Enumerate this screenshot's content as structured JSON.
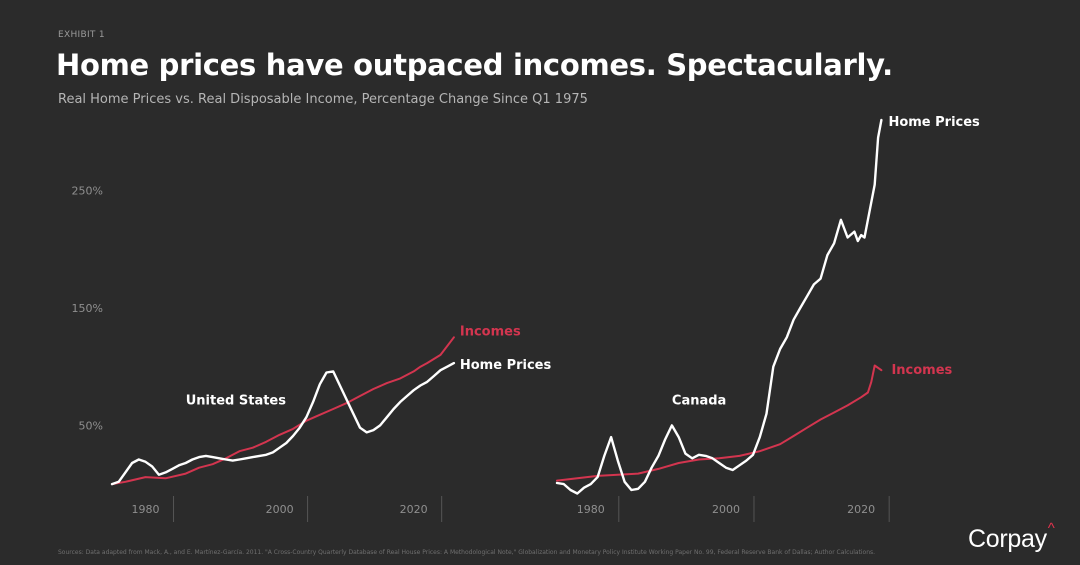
{
  "header": {
    "exhibit": "EXHIBIT 1",
    "title": "Home prices have outpaced incomes. Spectacularly.",
    "subtitle": "Real Home Prices vs. Real Disposable Income, Percentage Change Since Q1 1975"
  },
  "footer": {
    "source": "Sources: Data adapted from Mack, A., and E. Martínez-García. 2011. \"A Cross-Country Quarterly Database of Real House Prices: A Methodological Note,\" Globalization and Monetary Policy Institute Working Paper No. 99, Federal Reserve Bank of Dallas; Author Calculations.",
    "brand": "Corpay",
    "brand_mark": "^"
  },
  "colors": {
    "background": "#2b2b2b",
    "home_prices": "#ffffff",
    "incomes": "#d3354f",
    "axis_text": "#8f8f8f"
  },
  "chart_data": {
    "type": "line",
    "ylim": [
      -5,
      310
    ],
    "y_ticks": [
      50,
      150,
      250
    ],
    "y_tick_labels": [
      "50%",
      "150%",
      "250%"
    ],
    "grid": false,
    "panels": [
      {
        "name": "United States",
        "xlim": [
          1975,
          2029
        ],
        "x_ticks": [
          1980,
          2000,
          2020
        ],
        "x_tick_labels": [
          "1980",
          "2000",
          "2020"
        ],
        "series": [
          {
            "name": "Incomes",
            "color": "#d3354f",
            "x": [
              1975,
              1977,
              1980,
              1983,
              1986,
              1988,
              1990,
              1992,
              1994,
              1996,
              1998,
              2000,
              2002,
              2004,
              2006,
              2008,
              2010,
              2012,
              2014,
              2016,
              2018,
              2020,
              2021,
              2022,
              2024,
              2026
            ],
            "y": [
              0,
              2,
              6,
              5,
              9,
              14,
              17,
              22,
              28,
              31,
              36,
              42,
              47,
              54,
              59,
              64,
              69,
              75,
              81,
              86,
              90,
              96,
              100,
              103,
              110,
              125
            ]
          },
          {
            "name": "Home Prices",
            "color": "#ffffff",
            "x": [
              1975,
              1976,
              1977,
              1978,
              1979,
              1980,
              1981,
              1982,
              1983,
              1984,
              1985,
              1986,
              1987,
              1988,
              1989,
              1990,
              1991,
              1992,
              1993,
              1994,
              1995,
              1996,
              1997,
              1998,
              1999,
              2000,
              2001,
              2002,
              2003,
              2004,
              2005,
              2006,
              2007,
              2008,
              2009,
              2010,
              2011,
              2012,
              2013,
              2014,
              2015,
              2016,
              2017,
              2018,
              2019,
              2020,
              2021,
              2022,
              2023,
              2024,
              2025,
              2026
            ],
            "y": [
              0,
              2,
              10,
              18,
              21,
              19,
              15,
              8,
              10,
              13,
              16,
              18,
              21,
              23,
              24,
              23,
              22,
              21,
              20,
              21,
              22,
              23,
              24,
              25,
              27,
              31,
              35,
              41,
              48,
              57,
              70,
              85,
              95,
              96,
              84,
              72,
              60,
              48,
              44,
              46,
              50,
              57,
              64,
              70,
              75,
              80,
              84,
              87,
              92,
              97,
              100,
              103
            ]
          }
        ]
      },
      {
        "name": "Canada",
        "xlim": [
          1975,
          2029
        ],
        "x_ticks": [
          1980,
          2000,
          2020
        ],
        "x_tick_labels": [
          "1980",
          "2000",
          "2020"
        ],
        "series": [
          {
            "name": "Incomes",
            "color": "#d3354f",
            "x": [
              1975,
              1978,
              1981,
              1984,
              1987,
              1990,
              1993,
              1996,
              1999,
              2002,
              2005,
              2008,
              2010,
              2012,
              2014,
              2016,
              2018,
              2020,
              2021,
              2021.5,
              2022,
              2023
            ],
            "y": [
              3,
              5,
              7,
              8,
              9,
              13,
              18,
              21,
              22,
              24,
              28,
              34,
              41,
              48,
              55,
              61,
              67,
              74,
              78,
              87,
              101,
              97
            ]
          },
          {
            "name": "Home Prices",
            "color": "#ffffff",
            "x": [
              1975,
              1976,
              1977,
              1978,
              1979,
              1980,
              1981,
              1982,
              1983,
              1984,
              1985,
              1986,
              1987,
              1988,
              1989,
              1990,
              1991,
              1992,
              1993,
              1994,
              1995,
              1996,
              1997,
              1998,
              1999,
              2000,
              2001,
              2002,
              2003,
              2004,
              2005,
              2006,
              2007,
              2008,
              2009,
              2010,
              2011,
              2012,
              2013,
              2014,
              2015,
              2016,
              2017,
              2018,
              2019,
              2019.5,
              2020,
              2020.5,
              2021,
              2022,
              2022.5,
              2023
            ],
            "y": [
              1,
              0,
              -5,
              -8,
              -3,
              0,
              6,
              24,
              40,
              20,
              2,
              -5,
              -4,
              2,
              14,
              24,
              38,
              50,
              40,
              26,
              22,
              25,
              24,
              22,
              18,
              14,
              12,
              16,
              20,
              25,
              40,
              60,
              100,
              115,
              125,
              140,
              150,
              160,
              170,
              175,
              195,
              205,
              225,
              210,
              215,
              207,
              212,
              210,
              225,
              255,
              295,
              310
            ]
          }
        ]
      }
    ],
    "annotations": [
      {
        "panel": 0,
        "text": "United States"
      },
      {
        "panel": 0,
        "text": "Incomes"
      },
      {
        "panel": 0,
        "text": "Home Prices"
      },
      {
        "panel": 1,
        "text": "Canada"
      },
      {
        "panel": 1,
        "text": "Incomes"
      },
      {
        "panel": 1,
        "text": "Home Prices"
      }
    ]
  }
}
